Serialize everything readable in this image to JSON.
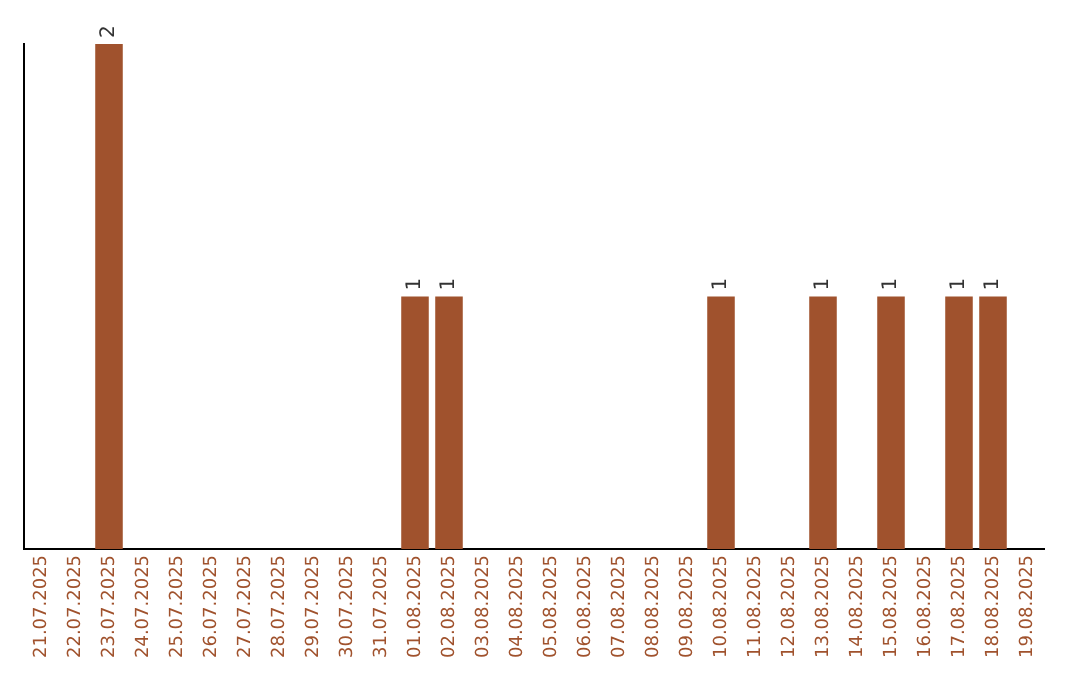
{
  "chart_data": {
    "type": "bar",
    "categories": [
      "21.07.2025",
      "22.07.2025",
      "23.07.2025",
      "24.07.2025",
      "25.07.2025",
      "26.07.2025",
      "27.07.2025",
      "28.07.2025",
      "29.07.2025",
      "30.07.2025",
      "31.07.2025",
      "01.08.2025",
      "02.08.2025",
      "03.08.2025",
      "04.08.2025",
      "05.08.2025",
      "06.08.2025",
      "07.08.2025",
      "08.08.2025",
      "09.08.2025",
      "10.08.2025",
      "11.08.2025",
      "12.08.2025",
      "13.08.2025",
      "14.08.2025",
      "15.08.2025",
      "16.08.2025",
      "17.08.2025",
      "18.08.2025",
      "19.08.2025"
    ],
    "values": [
      0,
      0,
      2,
      0,
      0,
      0,
      0,
      0,
      0,
      0,
      0,
      1,
      1,
      0,
      0,
      0,
      0,
      0,
      0,
      0,
      1,
      0,
      0,
      1,
      0,
      1,
      0,
      1,
      1,
      0
    ],
    "value_labels": [
      null,
      null,
      "2",
      null,
      null,
      null,
      null,
      null,
      null,
      null,
      null,
      "1",
      "1",
      null,
      null,
      null,
      null,
      null,
      null,
      null,
      "1",
      null,
      null,
      "1",
      null,
      "1",
      null,
      "1",
      "1",
      null
    ],
    "color": "#a0522d",
    "tick_labels": "x",
    "grid": false,
    "legend": false
  }
}
